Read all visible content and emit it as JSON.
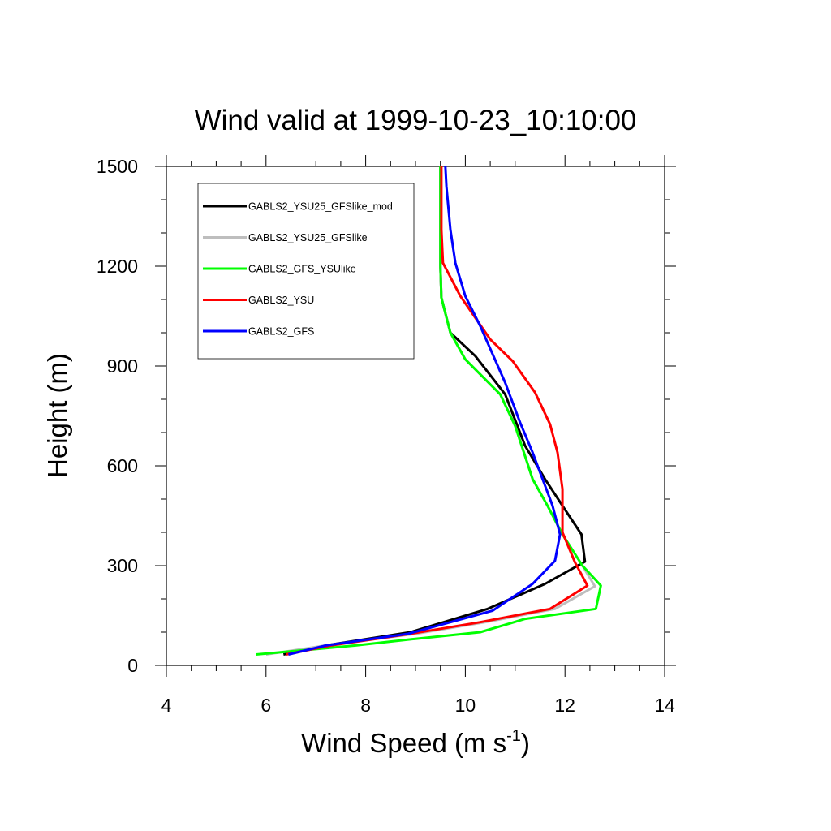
{
  "chart_data": {
    "type": "line",
    "title": "Wind valid at 1999-10-23_10:10:00",
    "xlabel": "Wind Speed (m s",
    "xlabel_sup": "-1",
    "xlabel_close": ")",
    "ylabel": "Height (m)",
    "xlim": [
      4,
      14
    ],
    "ylim": [
      0,
      1500
    ],
    "xticks": [
      4,
      6,
      8,
      10,
      12,
      14
    ],
    "xtick_labels": [
      "4",
      "6",
      "8",
      "10",
      "12",
      "14"
    ],
    "yticks": [
      0,
      300,
      600,
      900,
      1200,
      1500
    ],
    "ytick_labels": [
      "0",
      "300",
      "600",
      "900",
      "1200",
      "1500"
    ],
    "grid": false,
    "legend_position": "top-left",
    "series": [
      {
        "name": "GABLS2_YSU25_GFSlike_mod",
        "color": "#000000",
        "points": [
          [
            6.35,
            33
          ],
          [
            7.2,
            60
          ],
          [
            8.9,
            100
          ],
          [
            10.45,
            170
          ],
          [
            11.6,
            245
          ],
          [
            12.4,
            312
          ],
          [
            12.33,
            394
          ],
          [
            11.95,
            480
          ],
          [
            11.6,
            560
          ],
          [
            11.2,
            660
          ],
          [
            10.8,
            815
          ],
          [
            10.2,
            930
          ],
          [
            9.7,
            1000
          ],
          [
            9.52,
            1105
          ],
          [
            9.5,
            1200
          ],
          [
            9.5,
            1310
          ],
          [
            9.5,
            1410
          ],
          [
            9.5,
            1500
          ]
        ]
      },
      {
        "name": "GABLS2_YSU25_GFSlike",
        "color": "#bebebe",
        "points": [
          [
            6.0,
            33
          ],
          [
            7.2,
            60
          ],
          [
            9.0,
            95
          ],
          [
            10.4,
            130
          ],
          [
            11.8,
            170
          ],
          [
            12.6,
            238
          ],
          [
            12.35,
            300
          ],
          [
            11.95,
            394
          ],
          [
            11.65,
            480
          ],
          [
            11.35,
            560
          ],
          [
            11.0,
            720
          ],
          [
            10.7,
            815
          ],
          [
            10.0,
            920
          ],
          [
            9.7,
            1000
          ],
          [
            9.52,
            1105
          ],
          [
            9.5,
            1200
          ],
          [
            9.5,
            1310
          ],
          [
            9.5,
            1410
          ],
          [
            9.5,
            1500
          ]
        ]
      },
      {
        "name": "GABLS2_GFS_YSUlike",
        "color": "#00ff00",
        "points": [
          [
            5.8,
            33
          ],
          [
            7.8,
            60
          ],
          [
            9.0,
            80
          ],
          [
            10.3,
            100
          ],
          [
            11.2,
            140
          ],
          [
            12.62,
            170
          ],
          [
            12.72,
            240
          ],
          [
            12.35,
            300
          ],
          [
            11.95,
            394
          ],
          [
            11.65,
            480
          ],
          [
            11.35,
            560
          ],
          [
            11.0,
            720
          ],
          [
            10.7,
            815
          ],
          [
            10.0,
            920
          ],
          [
            9.7,
            1000
          ],
          [
            9.52,
            1105
          ],
          [
            9.5,
            1200
          ],
          [
            9.5,
            1310
          ],
          [
            9.5,
            1410
          ],
          [
            9.5,
            1500
          ]
        ]
      },
      {
        "name": "GABLS2_YSU",
        "color": "#ff0000",
        "points": [
          [
            6.4,
            33
          ],
          [
            7.3,
            60
          ],
          [
            8.9,
            95
          ],
          [
            10.3,
            130
          ],
          [
            11.7,
            170
          ],
          [
            12.45,
            240
          ],
          [
            12.2,
            310
          ],
          [
            11.95,
            400
          ],
          [
            11.95,
            530
          ],
          [
            11.85,
            640
          ],
          [
            11.7,
            725
          ],
          [
            11.4,
            820
          ],
          [
            10.95,
            915
          ],
          [
            10.5,
            980
          ],
          [
            9.9,
            1110
          ],
          [
            9.55,
            1210
          ],
          [
            9.52,
            1310
          ],
          [
            9.52,
            1410
          ],
          [
            9.52,
            1500
          ]
        ]
      },
      {
        "name": "GABLS2_GFS",
        "color": "#0000ff",
        "points": [
          [
            6.45,
            33
          ],
          [
            7.2,
            60
          ],
          [
            8.85,
            95
          ],
          [
            10.55,
            165
          ],
          [
            11.35,
            245
          ],
          [
            11.8,
            315
          ],
          [
            11.9,
            394
          ],
          [
            11.75,
            480
          ],
          [
            11.55,
            560
          ],
          [
            11.35,
            640
          ],
          [
            11.1,
            730
          ],
          [
            10.8,
            850
          ],
          [
            10.3,
            1020
          ],
          [
            10.0,
            1110
          ],
          [
            9.8,
            1210
          ],
          [
            9.7,
            1310
          ],
          [
            9.62,
            1440
          ],
          [
            9.6,
            1500
          ]
        ]
      }
    ]
  }
}
